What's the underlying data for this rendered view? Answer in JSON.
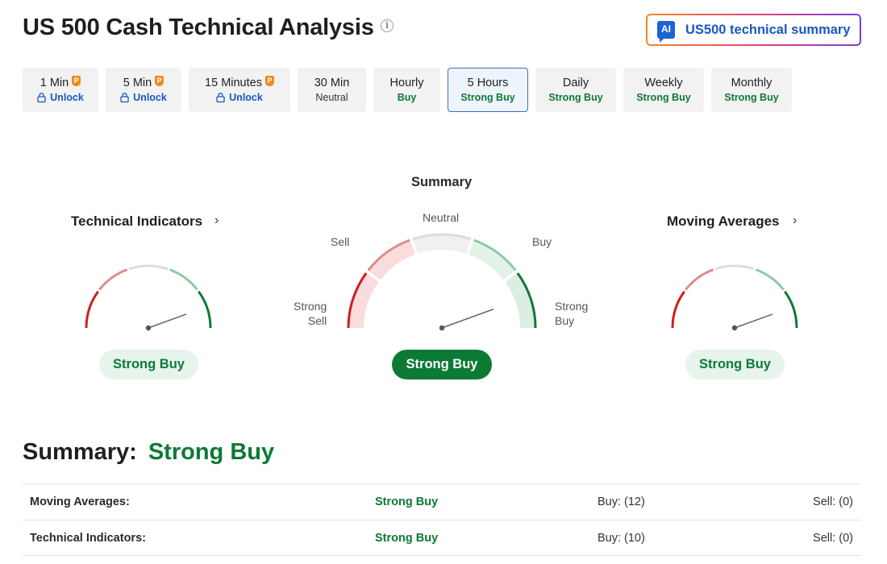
{
  "header": {
    "title": "US 500 Cash Technical Analysis",
    "ai_badge": "AI",
    "ai_button_label": "US500 technical summary"
  },
  "tabs": [
    {
      "label": "1 Min",
      "pro": true,
      "sub": "Unlock",
      "kind": "unlock",
      "width": 94
    },
    {
      "label": "5 Min",
      "pro": true,
      "sub": "Unlock",
      "kind": "unlock",
      "width": 94
    },
    {
      "label": "15 Minutes",
      "pro": true,
      "sub": "Unlock",
      "kind": "unlock",
      "width": 126
    },
    {
      "label": "30 Min",
      "pro": false,
      "sub": "Neutral",
      "kind": "neutral",
      "width": 85
    },
    {
      "label": "Hourly",
      "pro": false,
      "sub": "Buy",
      "kind": "buy",
      "width": 83
    },
    {
      "label": "5 Hours",
      "pro": false,
      "sub": "Strong Buy",
      "kind": "buy",
      "width": 100,
      "active": true
    },
    {
      "label": "Daily",
      "pro": false,
      "sub": "Strong Buy",
      "kind": "buy",
      "width": 100
    },
    {
      "label": "Weekly",
      "pro": false,
      "sub": "Strong Buy",
      "kind": "buy",
      "width": 100
    },
    {
      "label": "Monthly",
      "pro": false,
      "sub": "Strong Buy",
      "kind": "buy",
      "width": 100
    }
  ],
  "gauges": {
    "technical_indicators": {
      "title": "Technical Indicators",
      "value": "Strong Buy"
    },
    "summary": {
      "title": "Summary",
      "value": "Strong Buy",
      "labels": {
        "neutral": "Neutral",
        "sell": "Sell",
        "buy": "Buy",
        "strong_sell": "Strong\nSell",
        "strong_buy": "Strong\nBuy"
      }
    },
    "moving_averages": {
      "title": "Moving Averages",
      "value": "Strong Buy"
    }
  },
  "summary": {
    "label": "Summary:",
    "value": "Strong Buy"
  },
  "table": [
    {
      "name": "Moving Averages:",
      "signal": "Strong Buy",
      "buy": "Buy: (12)",
      "sell": "Sell: (0)"
    },
    {
      "name": "Technical Indicators:",
      "signal": "Strong Buy",
      "buy": "Buy: (10)",
      "sell": "Sell: (0)"
    }
  ],
  "colors": {
    "strong_sell": "#cc1f1f",
    "sell": "#e08a8a",
    "neutral": "#dcdcdc",
    "buy": "#8ccba3",
    "strong_buy": "#0c7a35",
    "accent": "#1a57c2"
  }
}
